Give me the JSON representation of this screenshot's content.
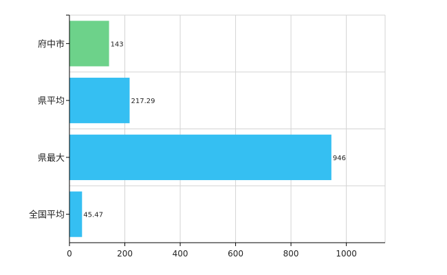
{
  "chart_data": {
    "type": "bar",
    "orientation": "horizontal",
    "title": "",
    "xlabel": "",
    "ylabel": "",
    "categories": [
      "府中市",
      "県平均",
      "県最大",
      "全国平均"
    ],
    "values": [
      143,
      217.29,
      946,
      45.47
    ],
    "data_labels": [
      "143",
      "217.29",
      "946",
      "45.47"
    ],
    "bar_colors": [
      "#6dd28a",
      "#35bff2",
      "#35bff2",
      "#35bff2"
    ],
    "xlim": [
      0,
      1140
    ],
    "x_ticks": [
      0,
      200,
      400,
      600,
      800,
      1000
    ],
    "x_tick_labels": [
      "0",
      "200",
      "400",
      "600",
      "800",
      "1000"
    ],
    "grid": true,
    "legend": "none"
  }
}
